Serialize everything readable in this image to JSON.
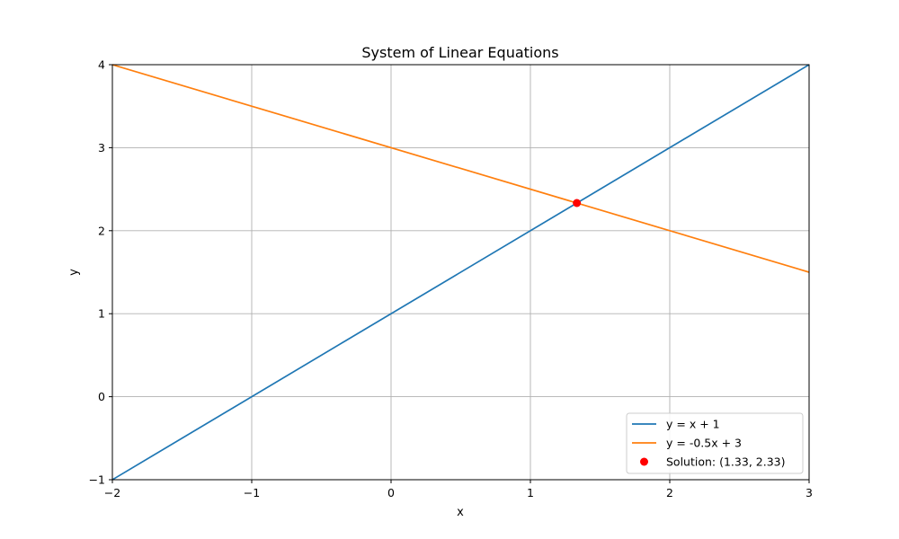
{
  "chart_data": {
    "type": "line",
    "title": "System of Linear Equations",
    "xlabel": "x",
    "ylabel": "y",
    "xlim": [
      -2,
      3
    ],
    "ylim": [
      -1,
      4
    ],
    "x_ticks": [
      -2,
      -1,
      0,
      1,
      2,
      3
    ],
    "y_ticks": [
      -1,
      0,
      1,
      2,
      3,
      4
    ],
    "x_tick_labels": [
      "−2",
      "−1",
      "0",
      "1",
      "2",
      "3"
    ],
    "y_tick_labels": [
      "−1",
      "0",
      "1",
      "2",
      "3",
      "4"
    ],
    "grid": true,
    "legend_position": "bottom-right",
    "series": [
      {
        "name": "y = x + 1",
        "type": "line",
        "color": "#1f77b4",
        "x": [
          -2,
          3
        ],
        "y": [
          -1,
          4
        ]
      },
      {
        "name": "y = -0.5x + 3",
        "type": "line",
        "color": "#ff7f0e",
        "x": [
          -2,
          3
        ],
        "y": [
          4,
          1.5
        ]
      }
    ],
    "points": [
      {
        "name": "Solution: (1.33, 2.33)",
        "x": 1.3333,
        "y": 2.3333,
        "color": "#ff0000"
      }
    ]
  }
}
